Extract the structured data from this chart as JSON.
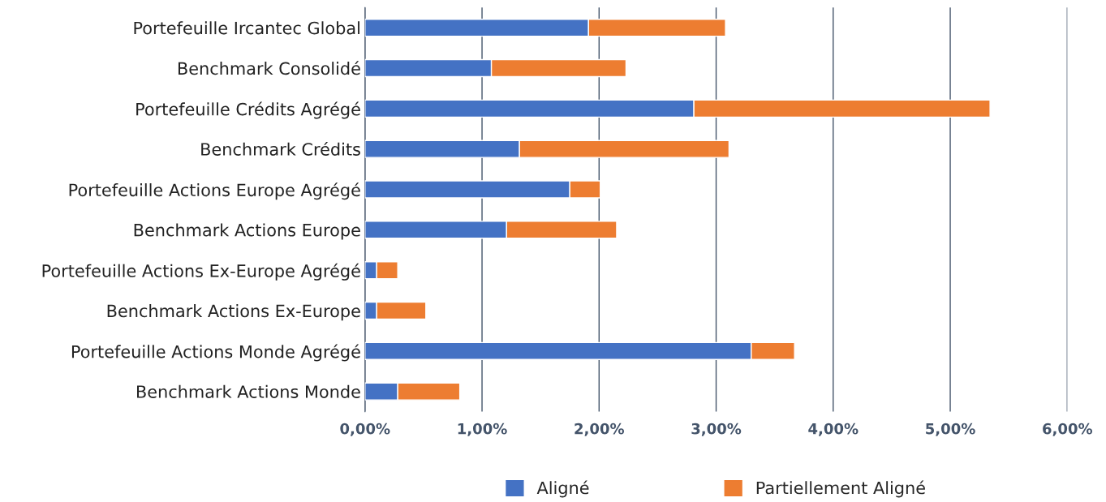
{
  "chart_data": {
    "type": "bar",
    "orientation": "horizontal",
    "stacked": true,
    "categories": [
      "Portefeuille Ircantec Global",
      "Benchmark Consolidé",
      "Portefeuille Crédits Agrégé",
      "Benchmark Crédits",
      "Portefeuille Actions Europe Agrégé",
      "Benchmark Actions Europe",
      "Portefeuille Actions Ex-Europe Agrégé",
      "Benchmark Actions Ex-Europe",
      "Portefeuille Actions Monde Agrégé",
      "Benchmark Actions Monde"
    ],
    "series": [
      {
        "name": "Aligné",
        "color": "#4472c4",
        "values": [
          1.91,
          1.08,
          2.81,
          1.32,
          1.75,
          1.21,
          0.1,
          0.1,
          3.3,
          0.28
        ]
      },
      {
        "name": "Partiellement Aligné",
        "color": "#ed7d31",
        "values": [
          1.17,
          1.15,
          2.53,
          1.79,
          0.26,
          0.94,
          0.18,
          0.42,
          0.37,
          0.53
        ]
      }
    ],
    "xlim": [
      0,
      6
    ],
    "xticks": [
      {
        "value": 0,
        "label": "0,00%"
      },
      {
        "value": 1,
        "label": "1,00%"
      },
      {
        "value": 2,
        "label": "2,00%"
      },
      {
        "value": 3,
        "label": "3,00%"
      },
      {
        "value": 4,
        "label": "4,00%"
      },
      {
        "value": 5,
        "label": "5,00%"
      },
      {
        "value": 6,
        "label": "6,00%"
      }
    ],
    "grid": "x",
    "legend": "bottom"
  }
}
